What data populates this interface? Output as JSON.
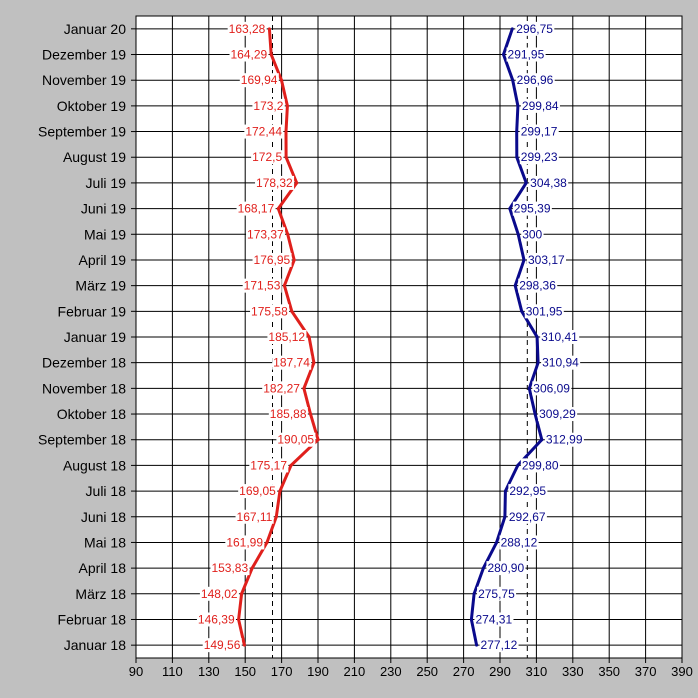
{
  "chart_data": {
    "type": "line",
    "orientation": "horizontal",
    "title": "",
    "xlabel": "",
    "ylabel": "",
    "xlim": [
      90,
      390
    ],
    "xticks": [
      90,
      110,
      130,
      150,
      170,
      190,
      210,
      230,
      250,
      270,
      290,
      310,
      330,
      350,
      370,
      390
    ],
    "grid": true,
    "legend": "none",
    "categories": [
      "Januar 20",
      "Dezember 19",
      "November 19",
      "Oktober 19",
      "September 19",
      "August 19",
      "Juli 19",
      "Juni 19",
      "Mai 19",
      "April 19",
      "März 19",
      "Februar 19",
      "Januar 19",
      "Dezember 18",
      "November 18",
      "Oktober 18",
      "September 18",
      "August 18",
      "Juli 18",
      "Juni 18",
      "Mai 18",
      "April 18",
      "März 18",
      "Februar 18",
      "Januar 18"
    ],
    "series": [
      {
        "color": "#e0201c",
        "values": [
          163.28,
          164.29,
          169.94,
          173.2,
          172.44,
          172.5,
          178.32,
          168.17,
          173.37,
          176.95,
          171.53,
          175.58,
          185.12,
          187.74,
          182.27,
          185.88,
          190.05,
          175.17,
          169.05,
          167.11,
          161.99,
          153.83,
          148.02,
          146.39,
          149.56
        ],
        "labels": [
          "163,28",
          "164,29",
          "169,94",
          "173,2",
          "172,44",
          "172,5",
          "178,32",
          "168,17",
          "173,37",
          "176,95",
          "171,53",
          "175,58",
          "185,12",
          "187,74",
          "182,27",
          "185,88",
          "190,05",
          "175,17",
          "169,05",
          "167,11",
          "161,99",
          "153,83",
          "148,02",
          "146,39",
          "149,56"
        ]
      },
      {
        "color": "#0a0a8c",
        "values": [
          296.75,
          291.95,
          296.96,
          299.84,
          299.17,
          299.23,
          304.38,
          295.39,
          300,
          303.17,
          298.36,
          301.95,
          310.41,
          310.94,
          306.09,
          309.29,
          312.99,
          299.8,
          292.95,
          292.67,
          288.12,
          280.9,
          275.75,
          274.31,
          277.12
        ],
        "labels": [
          "296,75",
          "291,95",
          "296,96",
          "299,84",
          "299,17",
          "299,23",
          "304,38",
          "295,39",
          "300",
          "303,17",
          "298,36",
          "301,95",
          "310,41",
          "310,94",
          "306,09",
          "309,29",
          "312,99",
          "299,80",
          "292,95",
          "292,67",
          "288,12",
          "280,90",
          "275,75",
          "274,31",
          "277,12"
        ]
      }
    ],
    "dashed_reference_lines": [
      165,
      305
    ]
  }
}
